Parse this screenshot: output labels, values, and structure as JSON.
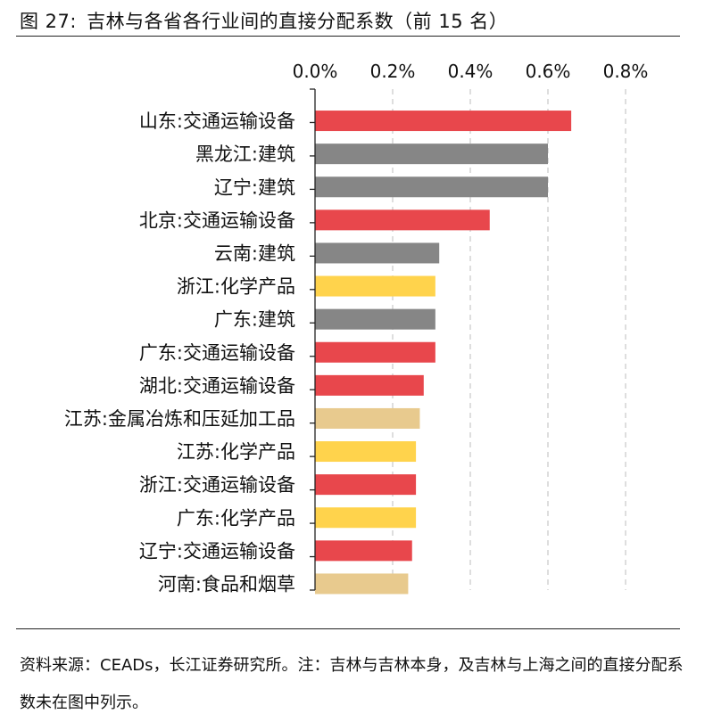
{
  "figure_label": "图 27:",
  "title": "吉林与各省各行业间的直接分配系数（前 15 名）",
  "footer": "资料来源：CEADs，长江证券研究所。注：吉林与吉林本身，及吉林与上海之间的直接分配系数未在图中列示。",
  "colors": {
    "transport": "#E8474C",
    "construction": "#868686",
    "chemical": "#FFD34C",
    "metal": "#E8CA8E",
    "food": "#E8CA8E"
  },
  "chart_data": {
    "type": "bar",
    "orientation": "horizontal",
    "title": "吉林与各省各行业间的直接分配系数（前 15 名）",
    "xlabel": "",
    "ylabel": "",
    "xlim": [
      0,
      0.8
    ],
    "x_ticks": [
      0,
      0.2,
      0.4,
      0.6,
      0.8
    ],
    "x_tick_labels": [
      "0.0%",
      "0.2%",
      "0.4%",
      "0.6%",
      "0.8%"
    ],
    "axis_position": "top",
    "grid": "vertical-dashed",
    "categories": [
      "山东:交通运输设备",
      "黑龙江:建筑",
      "辽宁:建筑",
      "北京:交通运输设备",
      "云南:建筑",
      "浙江:化学产品",
      "广东:建筑",
      "广东:交通运输设备",
      "湖北:交通运输设备",
      "江苏:金属冶炼和压延加工品",
      "江苏:化学产品",
      "浙江:交通运输设备",
      "广东:化学产品",
      "辽宁:交通运输设备",
      "河南:食品和烟草"
    ],
    "values": [
      0.66,
      0.6,
      0.6,
      0.45,
      0.32,
      0.31,
      0.31,
      0.31,
      0.28,
      0.27,
      0.26,
      0.26,
      0.26,
      0.25,
      0.24
    ],
    "color_keys": [
      "transport",
      "construction",
      "construction",
      "transport",
      "construction",
      "chemical",
      "construction",
      "transport",
      "transport",
      "metal",
      "chemical",
      "transport",
      "chemical",
      "transport",
      "food"
    ]
  }
}
